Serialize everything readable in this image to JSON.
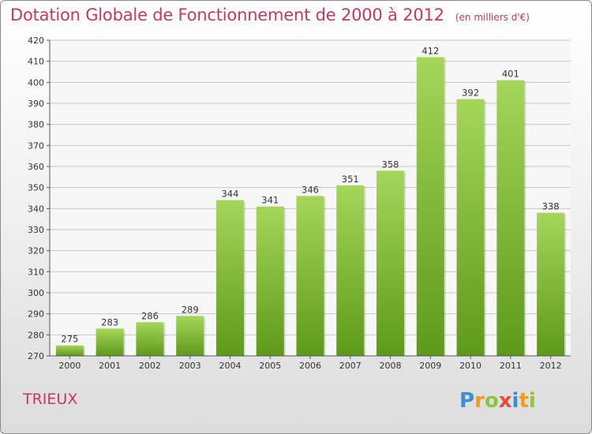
{
  "header": {
    "title": "Dotation Globale de Fonctionnement de 2000 à 2012",
    "unit": "(en milliers d'€)"
  },
  "footer": {
    "place": "TRIEUX",
    "logo_text": "Proxiti"
  },
  "colors": {
    "title": "#c8375e",
    "bar_light": "#a4d65a",
    "bar_dark": "#5e9a19",
    "axis": "#555555",
    "grid": "#c8c8c8"
  },
  "chart_data": {
    "type": "bar",
    "title": "Dotation Globale de Fonctionnement de 2000 à 2012",
    "subtitle": "(en milliers d'€)",
    "xlabel": "",
    "ylabel": "",
    "categories": [
      "2000",
      "2001",
      "2002",
      "2003",
      "2004",
      "2005",
      "2006",
      "2007",
      "2008",
      "2009",
      "2010",
      "2011",
      "2012"
    ],
    "values": [
      275,
      283,
      286,
      289,
      344,
      341,
      346,
      351,
      358,
      412,
      392,
      401,
      338
    ],
    "ylim": [
      270,
      420
    ],
    "yticks": [
      270,
      280,
      290,
      300,
      310,
      320,
      330,
      340,
      350,
      360,
      370,
      380,
      390,
      400,
      410,
      420
    ],
    "grid": true,
    "data_labels": true
  }
}
